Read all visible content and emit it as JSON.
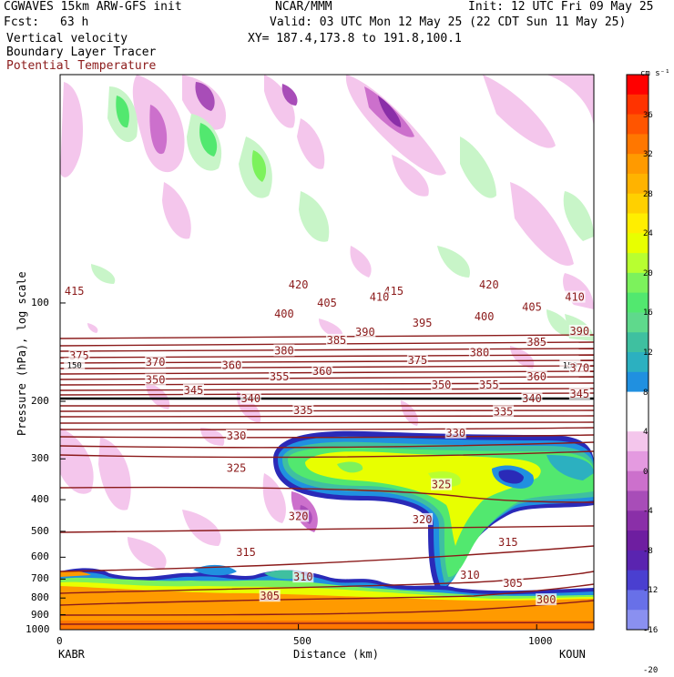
{
  "header": {
    "model": "CGWAVES 15km ARW-GFS init",
    "org": "NCAR/MMM",
    "init": "Init: 12 UTC Fri 09 May 25",
    "fcst_label": "Fcst:",
    "fcst_value": "63 h",
    "valid": "Valid: 03 UTC Mon 12 May 25 (22 CDT Sun 11 May 25)",
    "field1": "Vertical velocity",
    "xy": "XY= 187.4,173.8 to 191.8,100.1",
    "field2": "Boundary Layer Tracer",
    "field3": "Potential Temperature",
    "field3_color": "#8b1a1a"
  },
  "axes": {
    "ylabel": "Pressure (hPa), log scale",
    "xlabel": "Distance (km)",
    "x_ticks": [
      "0",
      "500",
      "1000"
    ],
    "y_ticks": [
      "100",
      "200",
      "300",
      "400",
      "500",
      "600",
      "700",
      "800",
      "900",
      "1000"
    ],
    "left_station": "KABR",
    "right_station": "KOUN"
  },
  "colorbar": {
    "units": "cm s⁻¹",
    "labels": [
      "36",
      "32",
      "28",
      "24",
      "20",
      "16",
      "12",
      "8",
      "4",
      "0",
      "-4",
      "-8",
      "-12",
      "-16",
      "-20"
    ],
    "colors": [
      "#ff0000",
      "#ff3300",
      "#ff5500",
      "#ff7700",
      "#ff9a00",
      "#ffb300",
      "#ffd000",
      "#ffee00",
      "#e8ff00",
      "#b8ff30",
      "#7cf25c",
      "#52e86f",
      "#5fd98c",
      "#3fc0a0",
      "#2cb0c0",
      "#2090e0",
      "#ffffff",
      "#ffffff",
      "#f4c6ec",
      "#e49ae0",
      "#cc70cc",
      "#a84db8",
      "#8a2fa8",
      "#6e1ea0",
      "#5a24b0",
      "#4a3fd0",
      "#6870e8",
      "#8a90f0"
    ],
    "dark_colors": [
      "#2cb0c0",
      "#2090e0",
      "#5a24b0",
      "#4a3fd0"
    ]
  },
  "chart_data": {
    "type": "contour",
    "x_range_km": [
      0,
      1120
    ],
    "y_range_hPa": [
      1000,
      20
    ],
    "y_scale": "log",
    "theta_labels": [
      {
        "v": "415",
        "km": 30,
        "p": 92
      },
      {
        "v": "420",
        "km": 500,
        "p": 88
      },
      {
        "v": "415",
        "km": 700,
        "p": 92
      },
      {
        "v": "420",
        "km": 900,
        "p": 88
      },
      {
        "v": "410",
        "km": 1080,
        "p": 96
      },
      {
        "v": "405",
        "km": 560,
        "p": 100
      },
      {
        "v": "410",
        "km": 670,
        "p": 96
      },
      {
        "v": "400",
        "km": 470,
        "p": 108
      },
      {
        "v": "395",
        "km": 760,
        "p": 115
      },
      {
        "v": "400",
        "km": 890,
        "p": 110
      },
      {
        "v": "405",
        "km": 990,
        "p": 103
      },
      {
        "v": "390",
        "km": 640,
        "p": 123
      },
      {
        "v": "385",
        "km": 580,
        "p": 130
      },
      {
        "v": "390",
        "km": 1090,
        "p": 122
      },
      {
        "v": "380",
        "km": 470,
        "p": 140
      },
      {
        "v": "385",
        "km": 1000,
        "p": 132
      },
      {
        "v": "380",
        "km": 880,
        "p": 142
      },
      {
        "v": "375",
        "km": 40,
        "p": 145
      },
      {
        "v": "370",
        "km": 200,
        "p": 152
      },
      {
        "v": "375",
        "km": 750,
        "p": 150
      },
      {
        "v": "360",
        "km": 360,
        "p": 155
      },
      {
        "v": "150",
        "km": 30,
        "p": 154
      },
      {
        "v": "150",
        "km": 1070,
        "p": 154
      },
      {
        "v": "370",
        "km": 1090,
        "p": 158
      },
      {
        "v": "355",
        "km": 460,
        "p": 168
      },
      {
        "v": "360",
        "km": 550,
        "p": 162
      },
      {
        "v": "360",
        "km": 1000,
        "p": 168
      },
      {
        "v": "350",
        "km": 200,
        "p": 172
      },
      {
        "v": "350",
        "km": 800,
        "p": 178
      },
      {
        "v": "355",
        "km": 900,
        "p": 178
      },
      {
        "v": "345",
        "km": 280,
        "p": 185
      },
      {
        "v": "340",
        "km": 400,
        "p": 196
      },
      {
        "v": "340",
        "km": 990,
        "p": 196
      },
      {
        "v": "345",
        "km": 1090,
        "p": 190
      },
      {
        "v": "335",
        "km": 510,
        "p": 213
      },
      {
        "v": "335",
        "km": 930,
        "p": 215
      },
      {
        "v": "330",
        "km": 370,
        "p": 255
      },
      {
        "v": "330",
        "km": 830,
        "p": 250
      },
      {
        "v": "325",
        "km": 370,
        "p": 320
      },
      {
        "v": "325",
        "km": 800,
        "p": 360
      },
      {
        "v": "320",
        "km": 500,
        "p": 450
      },
      {
        "v": "320",
        "km": 760,
        "p": 460
      },
      {
        "v": "315",
        "km": 390,
        "p": 580
      },
      {
        "v": "315",
        "km": 940,
        "p": 540
      },
      {
        "v": "310",
        "km": 510,
        "p": 690
      },
      {
        "v": "310",
        "km": 860,
        "p": 680
      },
      {
        "v": "305",
        "km": 440,
        "p": 790
      },
      {
        "v": "305",
        "km": 950,
        "p": 720
      },
      {
        "v": "300",
        "km": 1020,
        "p": 810
      }
    ]
  }
}
